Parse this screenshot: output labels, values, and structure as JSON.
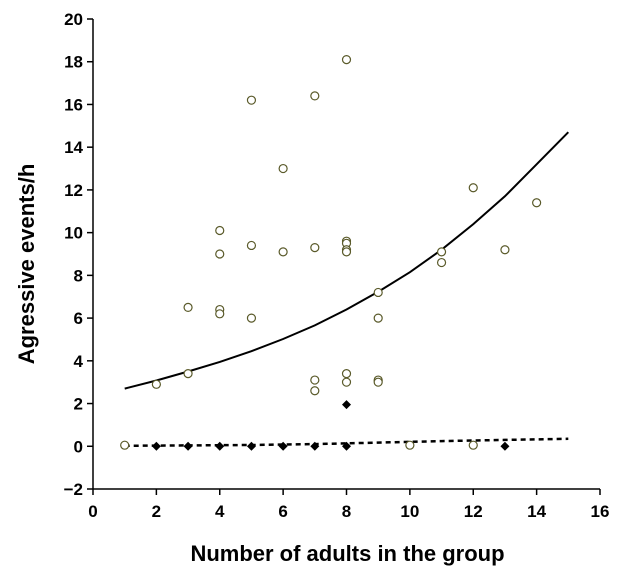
{
  "chart_data": {
    "type": "scatter",
    "title": "",
    "xlabel": "Number of adults in the group",
    "ylabel": "Agressive events/h",
    "xlim": [
      0,
      16
    ],
    "ylim": [
      -2,
      20
    ],
    "xticks": [
      0,
      2,
      4,
      6,
      8,
      10,
      12,
      14,
      16
    ],
    "yticks": [
      -2,
      0,
      2,
      4,
      6,
      8,
      10,
      12,
      14,
      16,
      18,
      20
    ],
    "grid": false,
    "legend": "none",
    "series": [
      {
        "marker": "open-circle",
        "color": "#5a5a2a",
        "points": [
          [
            1,
            0.05
          ],
          [
            2,
            2.9
          ],
          [
            3,
            6.5
          ],
          [
            3,
            3.4
          ],
          [
            4,
            10.1
          ],
          [
            4,
            9.0
          ],
          [
            4,
            6.4
          ],
          [
            4,
            6.2
          ],
          [
            5,
            16.2
          ],
          [
            5,
            9.4
          ],
          [
            5,
            6.0
          ],
          [
            6,
            13.0
          ],
          [
            6,
            9.1
          ],
          [
            7,
            16.4
          ],
          [
            7,
            9.3
          ],
          [
            7,
            3.1
          ],
          [
            7,
            2.6
          ],
          [
            8,
            18.1
          ],
          [
            8,
            9.6
          ],
          [
            8,
            9.5
          ],
          [
            8,
            9.2
          ],
          [
            8,
            9.1
          ],
          [
            8,
            3.4
          ],
          [
            8,
            3.0
          ],
          [
            9,
            7.2
          ],
          [
            9,
            6.0
          ],
          [
            9,
            3.1
          ],
          [
            9,
            3.0
          ],
          [
            10,
            0.05
          ],
          [
            11,
            9.1
          ],
          [
            11,
            8.6
          ],
          [
            12,
            12.1
          ],
          [
            12,
            0.05
          ],
          [
            13,
            9.2
          ],
          [
            14,
            11.4
          ]
        ]
      },
      {
        "marker": "filled-diamond",
        "color": "#000000",
        "points": [
          [
            2,
            0
          ],
          [
            3,
            0
          ],
          [
            4,
            0
          ],
          [
            5,
            0
          ],
          [
            6,
            0
          ],
          [
            7,
            0
          ],
          [
            8,
            0
          ],
          [
            8,
            1.95
          ],
          [
            13,
            0
          ]
        ]
      },
      {
        "marker": "solid-line",
        "color": "#000000",
        "points": [
          [
            1,
            2.7
          ],
          [
            2,
            3.08
          ],
          [
            3,
            3.5
          ],
          [
            4,
            3.95
          ],
          [
            5,
            4.45
          ],
          [
            6,
            5.02
          ],
          [
            7,
            5.66
          ],
          [
            8,
            6.4
          ],
          [
            9,
            7.23
          ],
          [
            10,
            8.15
          ],
          [
            11,
            9.2
          ],
          [
            12,
            10.4
          ],
          [
            13,
            11.7
          ],
          [
            14,
            13.2
          ],
          [
            15,
            14.7
          ]
        ]
      },
      {
        "marker": "dashed-line",
        "color": "#000000",
        "points": [
          [
            1,
            0.02
          ],
          [
            3,
            0.04
          ],
          [
            5,
            0.06
          ],
          [
            7,
            0.1
          ],
          [
            9,
            0.17
          ],
          [
            11,
            0.24
          ],
          [
            13,
            0.3
          ],
          [
            15,
            0.35
          ]
        ]
      }
    ]
  }
}
